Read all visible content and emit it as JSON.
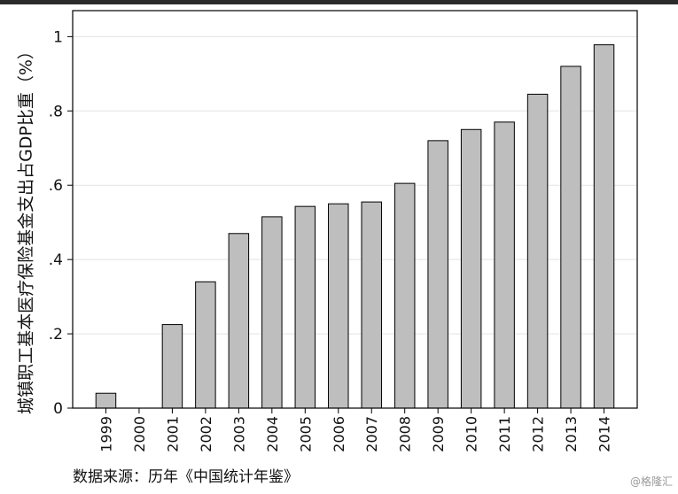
{
  "chart_data": {
    "type": "bar",
    "categories": [
      "1999",
      "2000",
      "2001",
      "2002",
      "2003",
      "2004",
      "2005",
      "2006",
      "2007",
      "2008",
      "2009",
      "2010",
      "2011",
      "2012",
      "2013",
      "2014"
    ],
    "values": [
      0.04,
      0,
      0.225,
      0.34,
      0.47,
      0.515,
      0.543,
      0.55,
      0.555,
      0.605,
      0.72,
      0.75,
      0.77,
      0.845,
      0.92,
      0.978
    ],
    "ylabel": "城镇职工基本医疗保险基金支出占GDP比重（%）",
    "xlabel": "",
    "ylim": [
      0,
      1.07
    ],
    "yticks": [
      0,
      0.2,
      0.4,
      0.6,
      0.8,
      1
    ],
    "ytick_labels": [
      "0",
      ".2",
      ".4",
      ".6",
      ".8",
      "1"
    ],
    "grid": true,
    "bar_color": "#bebebe"
  },
  "source_note": "数据来源：历年《中国统计年鉴》",
  "watermark": "@格隆汇"
}
